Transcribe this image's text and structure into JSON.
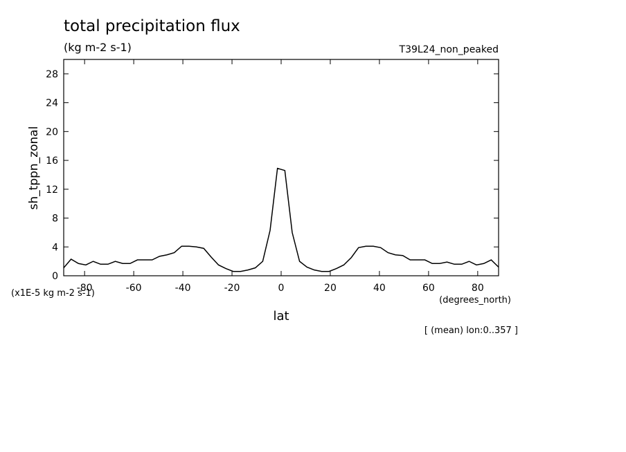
{
  "chart_data": {
    "type": "line",
    "title": "total precipitation flux",
    "subtitle": "(kg m-2 s-1)",
    "run_label": "T39L24_non_peaked",
    "y_label": "sh_tppn_zonal",
    "x_label": "lat",
    "y_units": "(x1E-5 kg m-2 s-1)",
    "x_units": "(degrees_north)",
    "annotation": "[ (mean) lon:0..357 ]",
    "x": [
      -88.5,
      -85.5,
      -82.5,
      -79.5,
      -76.5,
      -73.5,
      -70.5,
      -67.5,
      -64.5,
      -61.5,
      -58.5,
      -55.5,
      -52.5,
      -49.5,
      -46.5,
      -43.5,
      -40.5,
      -37.5,
      -34.5,
      -31.5,
      -28.5,
      -25.5,
      -22.5,
      -19.5,
      -16.5,
      -13.5,
      -10.5,
      -7.5,
      -4.5,
      -1.5,
      1.5,
      4.5,
      7.5,
      10.5,
      13.5,
      16.5,
      19.5,
      22.5,
      25.5,
      28.5,
      31.5,
      34.5,
      37.5,
      40.5,
      43.5,
      46.5,
      49.5,
      52.5,
      55.5,
      58.5,
      61.5,
      64.5,
      67.5,
      70.5,
      73.5,
      76.5,
      79.5,
      82.5,
      85.5,
      88.5
    ],
    "series": [
      {
        "color": "#000000",
        "values": [
          1.1,
          2.3,
          1.7,
          1.5,
          2.0,
          1.6,
          1.6,
          2.0,
          1.7,
          1.7,
          2.2,
          2.2,
          2.2,
          2.7,
          2.9,
          3.2,
          4.1,
          4.1,
          4.0,
          3.8,
          2.6,
          1.5,
          1.0,
          0.6,
          0.6,
          0.8,
          1.1,
          2.0,
          6.3,
          14.9,
          14.6,
          6.0,
          2.0,
          1.2,
          0.8,
          0.6,
          0.6,
          1.0,
          1.5,
          2.5,
          3.9,
          4.1,
          4.1,
          3.9,
          3.2,
          2.9,
          2.8,
          2.2,
          2.2,
          2.2,
          1.7,
          1.7,
          1.9,
          1.6,
          1.6,
          2.0,
          1.5,
          1.7,
          2.2,
          1.2
        ]
      }
    ],
    "xlim": [
      -88.5,
      88.5
    ],
    "xticks": [
      -80,
      -60,
      -40,
      -20,
      0,
      20,
      40,
      60,
      80
    ],
    "ylim": [
      0,
      30
    ],
    "yticks": [
      0,
      4,
      8,
      12,
      16,
      20,
      24,
      28
    ]
  }
}
